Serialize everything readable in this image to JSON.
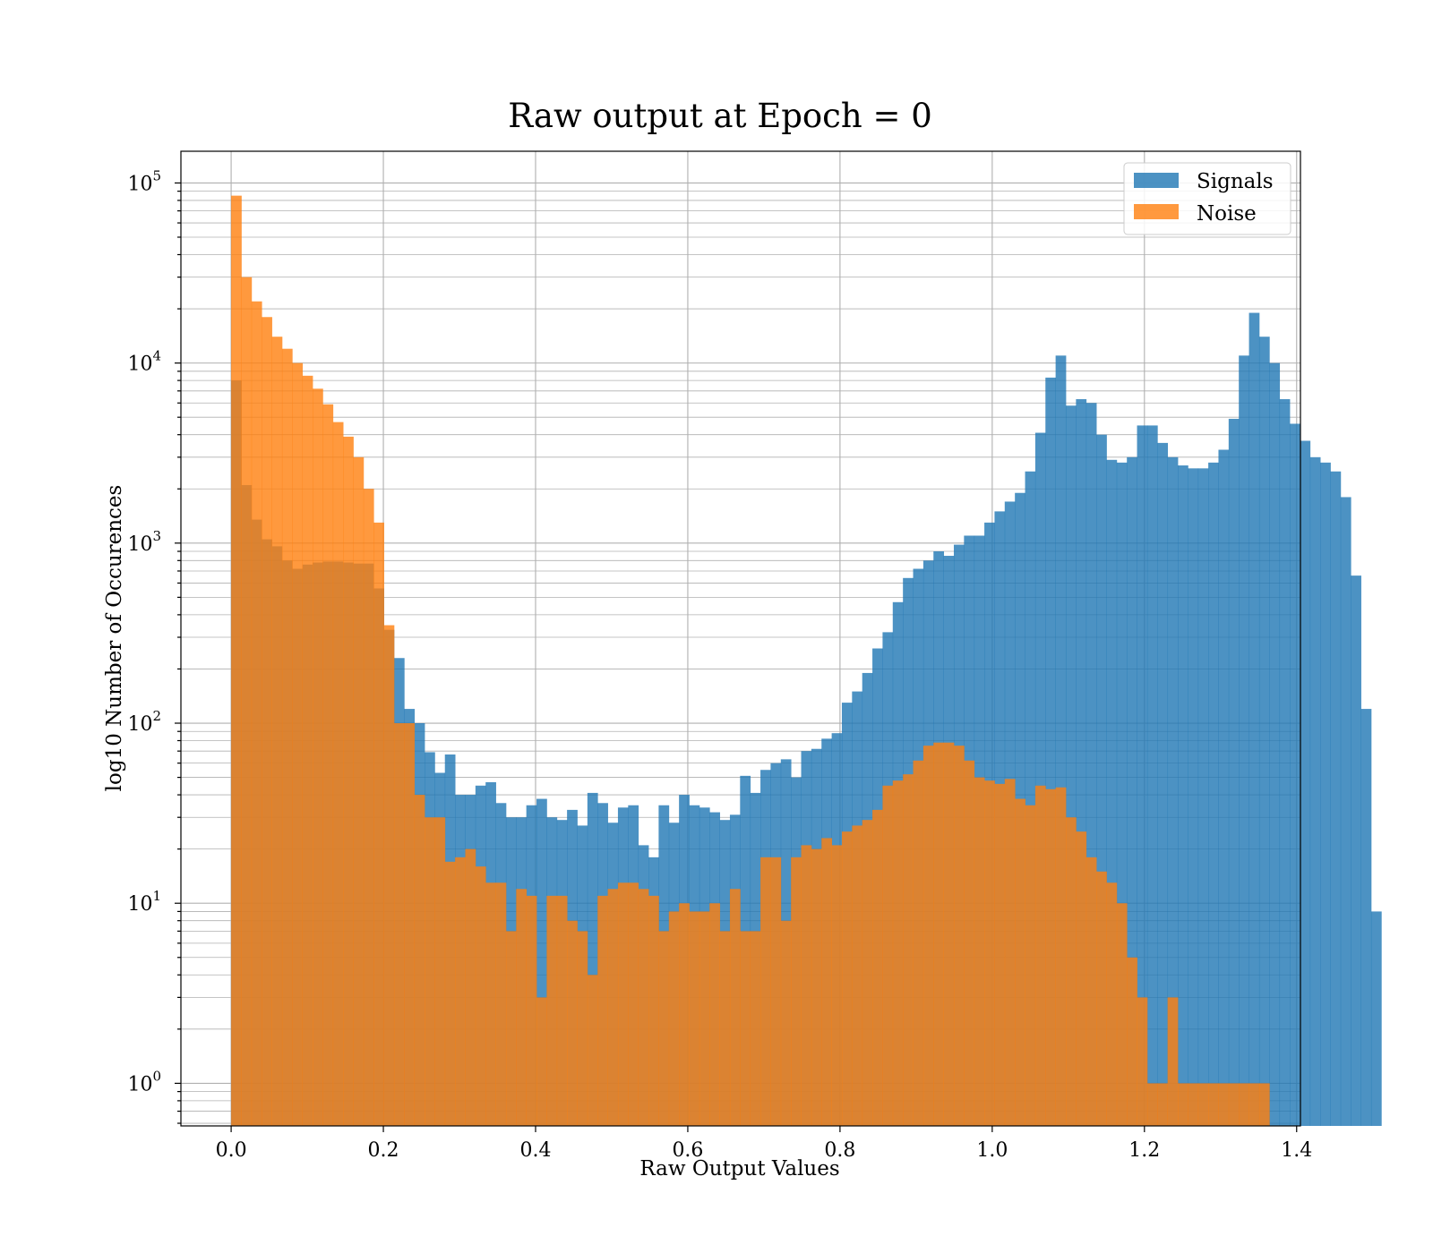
{
  "chart_data": {
    "type": "bar",
    "title": "Raw output at Epoch = 0",
    "xlabel": "Raw Output Values",
    "ylabel": "log10 Number of Occurences",
    "xlim": [
      -0.066,
      1.405
    ],
    "ylim": [
      0.58,
      150000
    ],
    "yscale": "log",
    "xticks": [
      "0.0",
      "0.2",
      "0.4",
      "0.6",
      "0.8",
      "1.0",
      "1.2",
      "1.4"
    ],
    "xtick_values": [
      0,
      0.2,
      0.4,
      0.6,
      0.8,
      1.0,
      1.2,
      1.4
    ],
    "yticks": [
      {
        "base": "10",
        "exp": "0",
        "value": 1
      },
      {
        "base": "10",
        "exp": "1",
        "value": 10
      },
      {
        "base": "10",
        "exp": "2",
        "value": 100
      },
      {
        "base": "10",
        "exp": "3",
        "value": 1000
      },
      {
        "base": "10",
        "exp": "4",
        "value": 10000
      },
      {
        "base": "10",
        "exp": "5",
        "value": 100000
      }
    ],
    "grid": true,
    "legend": "top-right",
    "bin_start": 0.0,
    "bin_width": 0.013374,
    "series": [
      {
        "name": "Signals",
        "color": "#1f77b4",
        "alpha": 0.8,
        "values": [
          8000,
          2100,
          1350,
          1050,
          960,
          800,
          720,
          760,
          780,
          790,
          790,
          780,
          770,
          770,
          560,
          330,
          230,
          120,
          100,
          69,
          53,
          67,
          40,
          40,
          45,
          47,
          36,
          30,
          30,
          35,
          38,
          30,
          29,
          33,
          27,
          41,
          36,
          28,
          34,
          35,
          21,
          18,
          35,
          28,
          40,
          35,
          34,
          32,
          29,
          31,
          51,
          41,
          55,
          60,
          63,
          50,
          70,
          72,
          82,
          88,
          130,
          150,
          190,
          260,
          320,
          470,
          640,
          720,
          800,
          900,
          850,
          980,
          1100,
          1100,
          1300,
          1500,
          1700,
          1900,
          2500,
          4100,
          8300,
          11000,
          5800,
          6300,
          6000,
          4000,
          2900,
          2800,
          3000,
          4500,
          4500,
          3600,
          3000,
          2700,
          2600,
          2600,
          2800,
          3300,
          4900,
          11000,
          19000,
          14000,
          10000,
          6300,
          4600,
          3700,
          3000,
          2800,
          2500,
          1800,
          660,
          120,
          9
        ]
      },
      {
        "name": "Noise",
        "color": "#ff7f0e",
        "alpha": 0.8,
        "values": [
          85000,
          30000,
          22000,
          18000,
          14000,
          12000,
          10000,
          8500,
          7200,
          5900,
          4700,
          3900,
          3000,
          2000,
          1300,
          350,
          100,
          100,
          40,
          30,
          30,
          17,
          18,
          20,
          16,
          13,
          13,
          7,
          12,
          11,
          3,
          11,
          11,
          8,
          7,
          4,
          11,
          12,
          13,
          13,
          12,
          11,
          7,
          9,
          10,
          9,
          9,
          10,
          7,
          12,
          7,
          7,
          18,
          18,
          8,
          18,
          21,
          20,
          23,
          21,
          25,
          27,
          29,
          33,
          45,
          48,
          52,
          62,
          75,
          78,
          78,
          75,
          62,
          50,
          48,
          46,
          49,
          38,
          35,
          45,
          43,
          44,
          30,
          25,
          18,
          15,
          13,
          10,
          5,
          3,
          1,
          1,
          3,
          1,
          1,
          1,
          1,
          1,
          1,
          1,
          1,
          1
        ]
      }
    ]
  }
}
